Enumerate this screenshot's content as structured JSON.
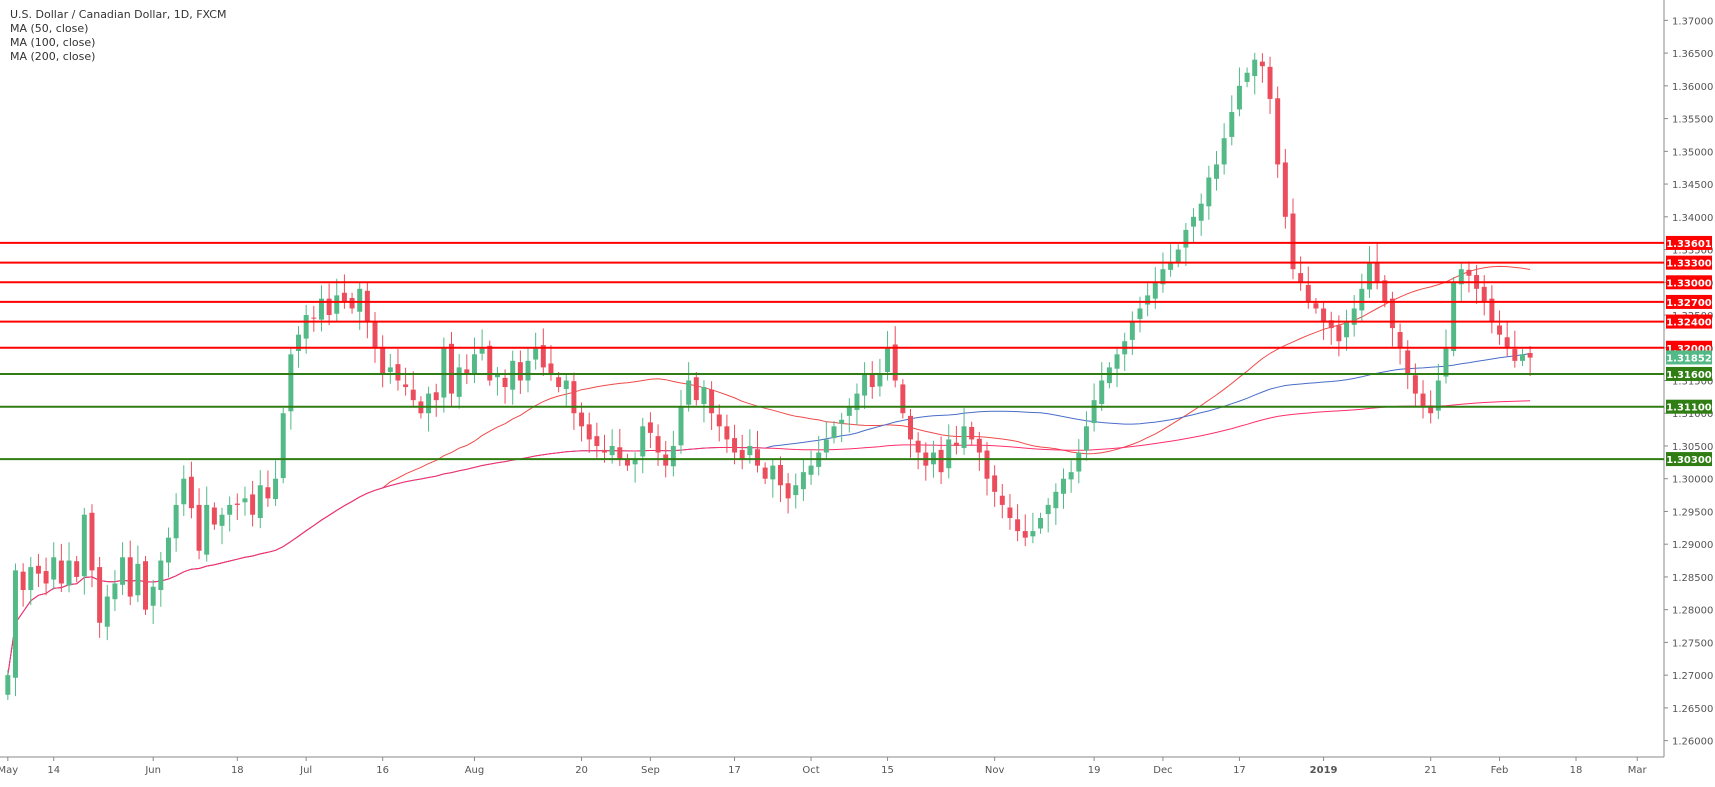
{
  "title": "U.S. Dollar / Canadian Dollar, 1D, FXCM",
  "indicators": [
    "MA (50, close)",
    "MA (100, close)",
    "MA (200, close)"
  ],
  "colors": {
    "up": "#53b987",
    "down": "#eb4d5c",
    "resistance": "#ff0000",
    "support": "#2f7d13",
    "ma50": "#ef4a4a",
    "ma100": "#4a6dc9",
    "ma200": "#ff2e6a",
    "current": "#53b987"
  },
  "chart_data": {
    "type": "candlestick",
    "ylim": [
      1.2575,
      1.3725
    ],
    "y_ticks": [
      "1.37000",
      "1.36500",
      "1.36000",
      "1.35500",
      "1.35000",
      "1.34500",
      "1.34000",
      "1.33500",
      "1.33000",
      "1.32500",
      "1.32000",
      "1.31500",
      "1.31000",
      "1.30500",
      "1.30000",
      "1.29500",
      "1.29000",
      "1.28500",
      "1.28000",
      "1.27500",
      "1.27000",
      "1.26500",
      "1.26000"
    ],
    "x_ticks": [
      {
        "label": "May",
        "index": 0
      },
      {
        "label": "14",
        "index": 6
      },
      {
        "label": "Jun",
        "index": 19
      },
      {
        "label": "18",
        "index": 30
      },
      {
        "label": "Jul",
        "index": 39
      },
      {
        "label": "16",
        "index": 49
      },
      {
        "label": "Aug",
        "index": 61
      },
      {
        "label": "20",
        "index": 75
      },
      {
        "label": "Sep",
        "index": 84
      },
      {
        "label": "17",
        "index": 95
      },
      {
        "label": "Oct",
        "index": 105
      },
      {
        "label": "15",
        "index": 115
      },
      {
        "label": "Nov",
        "index": 129
      },
      {
        "label": "19",
        "index": 142
      },
      {
        "label": "Dec",
        "index": 151
      },
      {
        "label": "17",
        "index": 161
      },
      {
        "label": "2019",
        "index": 172
      },
      {
        "label": "21",
        "index": 186
      },
      {
        "label": "Feb",
        "index": 195
      },
      {
        "label": "18",
        "index": 205
      },
      {
        "label": "Mar",
        "index": 213
      }
    ],
    "x_count": 217,
    "closes": [
      1.27,
      1.286,
      1.283,
      1.2865,
      1.2855,
      1.284,
      1.288,
      1.284,
      1.2875,
      1.285,
      1.2945,
      1.286,
      1.278,
      1.282,
      1.284,
      1.288,
      1.282,
      1.287,
      1.28,
      1.2835,
      1.2875,
      1.291,
      1.296,
      1.3,
      1.2955,
      1.289,
      1.296,
      1.293,
      1.2945,
      1.296,
      1.296,
      1.297,
      1.2945,
      1.299,
      1.297,
      1.3,
      1.31,
      1.319,
      1.322,
      1.325,
      1.3245,
      1.3275,
      1.325,
      1.328,
      1.327,
      1.326,
      1.329,
      1.324,
      1.32,
      1.316,
      1.317,
      1.315,
      1.314,
      1.312,
      1.31,
      1.313,
      1.312,
      1.32,
      1.313,
      1.317,
      1.316,
      1.319,
      1.32,
      1.315,
      1.316,
      1.314,
      1.318,
      1.315,
      1.318,
      1.32,
      1.317,
      1.316,
      1.314,
      1.315,
      1.31,
      1.308,
      1.306,
      1.305,
      1.304,
      1.305,
      1.303,
      1.302,
      1.303,
      1.308,
      1.307,
      1.304,
      1.302,
      1.305,
      1.311,
      1.315,
      1.312,
      1.314,
      1.31,
      1.308,
      1.306,
      1.304,
      1.303,
      1.305,
      1.302,
      1.3,
      1.302,
      1.299,
      1.297,
      1.299,
      1.301,
      1.302,
      1.304,
      1.306,
      1.308,
      1.309,
      1.311,
      1.313,
      1.316,
      1.314,
      1.316,
      1.32,
      1.315,
      1.31,
      1.306,
      1.304,
      1.302,
      1.304,
      1.301,
      1.306,
      1.305,
      1.308,
      1.306,
      1.304,
      1.3,
      1.298,
      1.296,
      1.294,
      1.292,
      1.291,
      1.292,
      1.294,
      1.296,
      1.298,
      1.3,
      1.301,
      1.304,
      1.308,
      1.312,
      1.315,
      1.317,
      1.319,
      1.321,
      1.324,
      1.326,
      1.328,
      1.33,
      1.332,
      1.333,
      1.335,
      1.338,
      1.34,
      1.342,
      1.346,
      1.348,
      1.352,
      1.356,
      1.36,
      1.362,
      1.364,
      1.363,
      1.358,
      1.348,
      1.34,
      1.332,
      1.33,
      1.327,
      1.326,
      1.324,
      1.323,
      1.321,
      1.324,
      1.326,
      1.329,
      1.333,
      1.33,
      1.327,
      1.323,
      1.32,
      1.316,
      1.313,
      1.311,
      1.31,
      1.315,
      1.32,
      1.33,
      1.332,
      1.331,
      1.329,
      1.327,
      1.324,
      1.322,
      1.32,
      1.318,
      1.319,
      1.3185
    ],
    "lines": [
      {
        "label": "1.33601",
        "value": 1.33601,
        "kind": "resistance"
      },
      {
        "label": "1.33300",
        "value": 1.333,
        "kind": "resistance"
      },
      {
        "label": "1.33000",
        "value": 1.33,
        "kind": "resistance"
      },
      {
        "label": "1.32700",
        "value": 1.327,
        "kind": "resistance"
      },
      {
        "label": "1.32400",
        "value": 1.324,
        "kind": "resistance"
      },
      {
        "label": "1.32000",
        "value": 1.32,
        "kind": "resistance"
      },
      {
        "label": "1.31600",
        "value": 1.316,
        "kind": "support"
      },
      {
        "label": "1.31100",
        "value": 1.311,
        "kind": "support"
      },
      {
        "label": "1.30300",
        "value": 1.303,
        "kind": "support"
      }
    ],
    "current_price": {
      "label": "1.31852",
      "value": 1.31852
    },
    "ma_periods": [
      50,
      100,
      200
    ]
  }
}
